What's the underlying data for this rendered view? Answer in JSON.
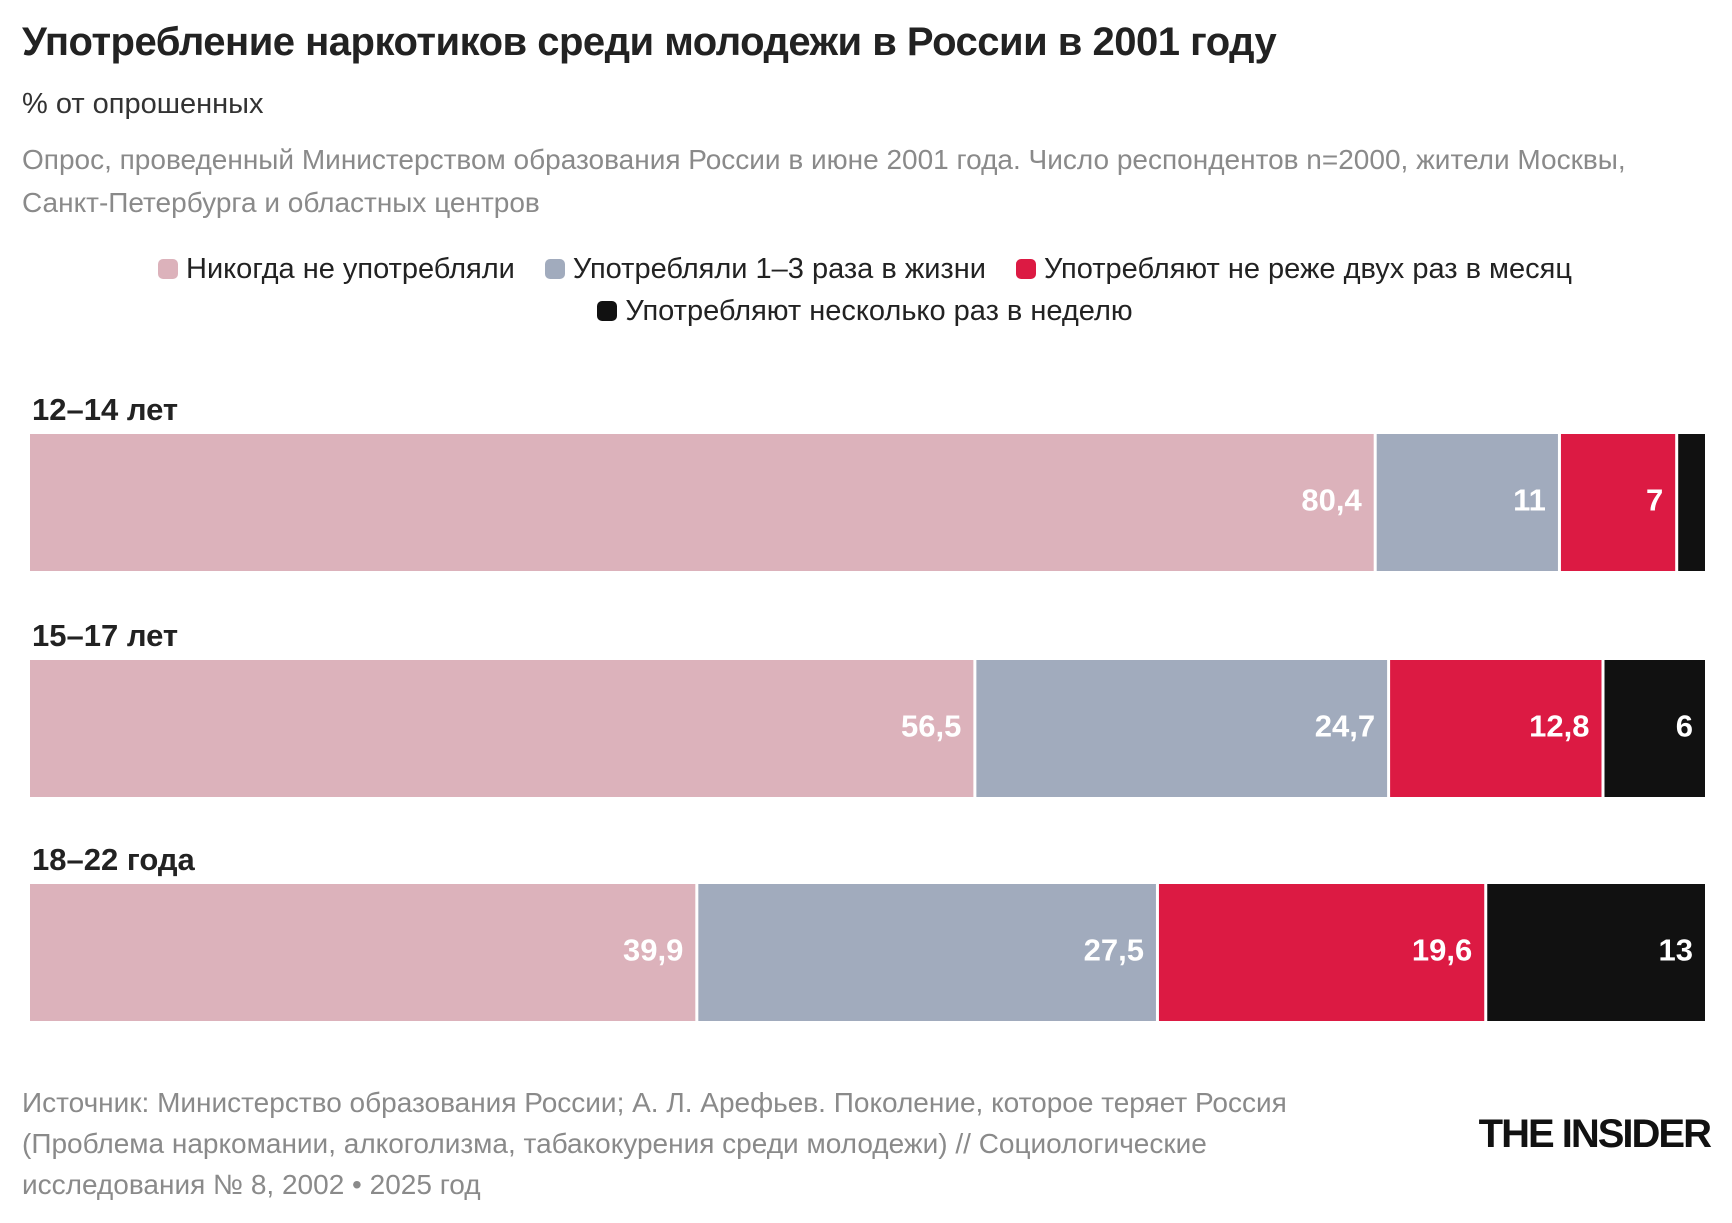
{
  "chart_data": {
    "type": "stacked-bar-horizontal",
    "title": "Употребление наркотиков среди молодежи в России в 2001 году",
    "subtitle": "% от опрошенных",
    "note": "Опрос, проведенный Министерством образования России в июне 2001 года. Число респондентов n=2000, жители Москвы, Санкт-Петербурга и областных центров",
    "categories": [
      "12–14 лет",
      "15–17 лет",
      "18–22 года"
    ],
    "series": [
      {
        "name": "Никогда не употребляли",
        "color": "#dcb2bb",
        "values": [
          80.4,
          56.5,
          39.9
        ],
        "value_labels": [
          "80,4",
          "56,5",
          "39,9"
        ]
      },
      {
        "name": "Употребляли 1–3 раза в жизни",
        "color": "#a1abbd",
        "values": [
          11,
          24.7,
          27.5
        ],
        "value_labels": [
          "11",
          "24,7",
          "27,5"
        ]
      },
      {
        "name": "Употребляют не реже двух раз в месяц",
        "color": "#dc1a43",
        "values": [
          7,
          12.8,
          19.6
        ],
        "value_labels": [
          "7",
          "12,8",
          "19,6"
        ]
      },
      {
        "name": "Употребляют несколько раз в неделю",
        "color": "#111111",
        "values": [
          1.6,
          6,
          13
        ],
        "value_labels": [
          null,
          "6",
          "13"
        ]
      }
    ],
    "xlim": [
      0,
      100
    ],
    "source": "Источник: Министерство образования России; А. Л. Арефьев. Поколение, которое теряет Россия (Проблема наркомании, алкоголизма, табакокурения среди молодежи) // Социологические исследования № 8, 2002 • 2025 год",
    "logo": "THE INSIDER"
  }
}
